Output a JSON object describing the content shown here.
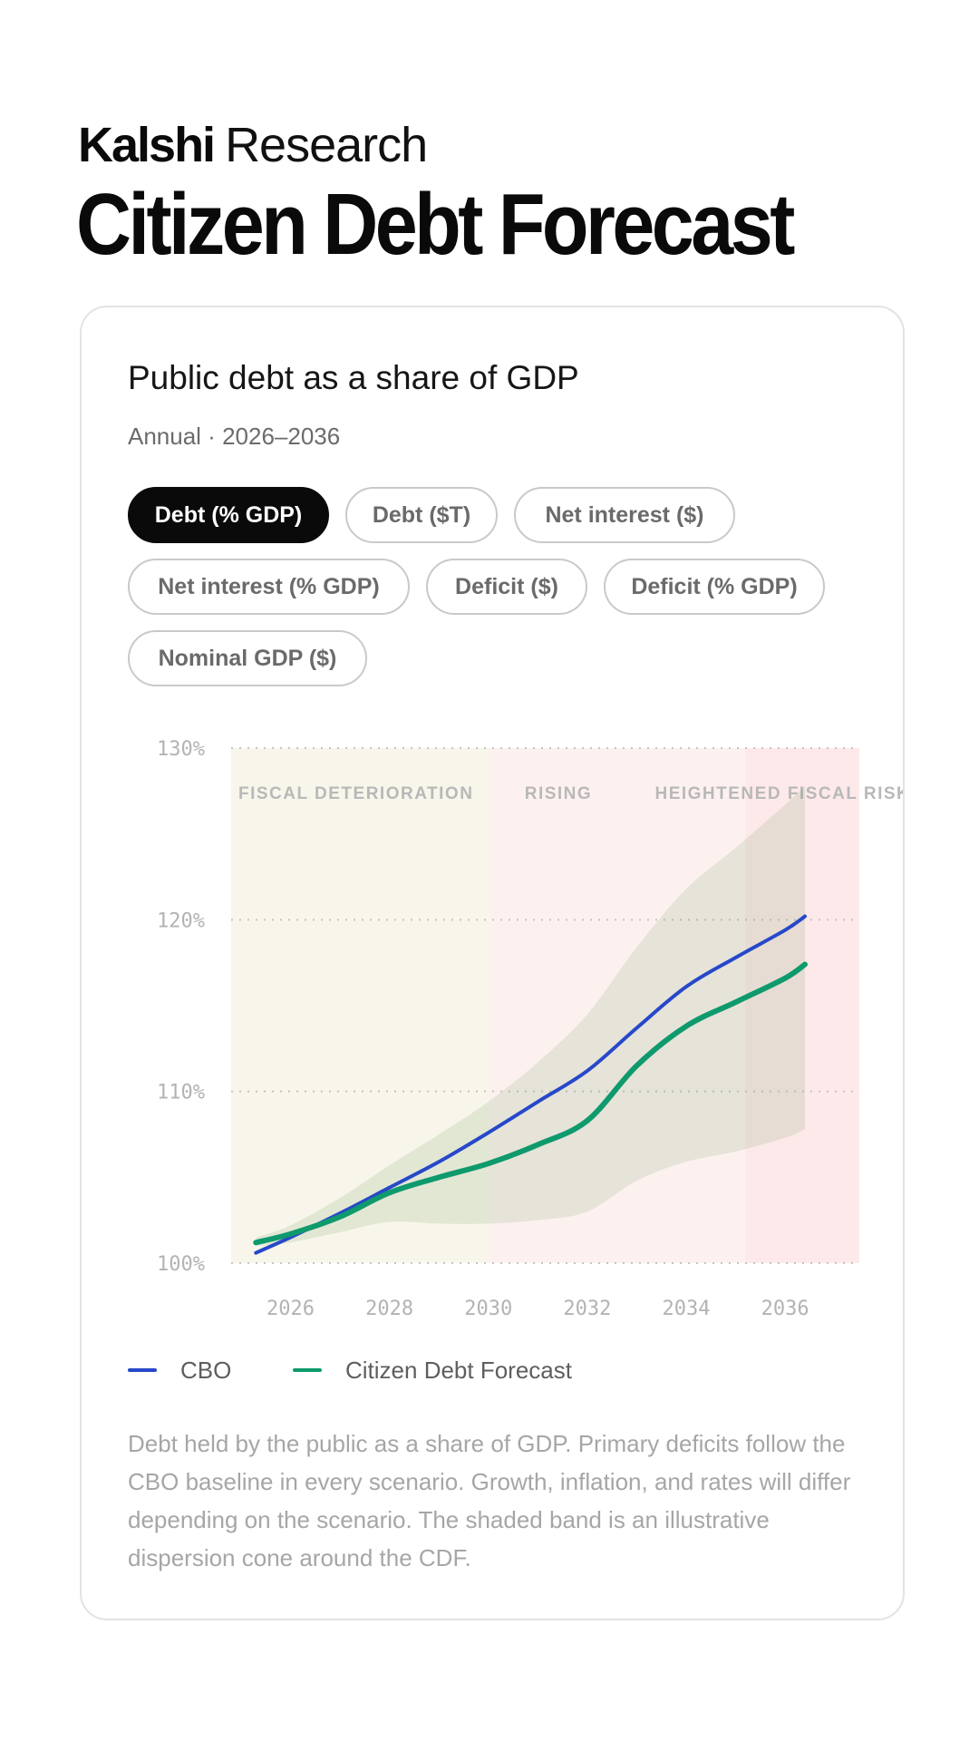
{
  "header": {
    "brand_logo": "Kalshi",
    "brand_sub": "Research",
    "title": "Citizen Debt Forecast"
  },
  "card": {
    "title": "Public debt as a share of GDP",
    "subtitle": "Annual · 2026–2036",
    "tabs": [
      {
        "label": "Debt (% GDP)",
        "active": true
      },
      {
        "label": "Debt ($T)",
        "active": false
      },
      {
        "label": "Net interest ($)",
        "active": false
      },
      {
        "label": "Net interest (% GDP)",
        "active": false
      },
      {
        "label": "Deficit ($)",
        "active": false
      },
      {
        "label": "Deficit (% GDP)",
        "active": false
      },
      {
        "label": "Nominal GDP ($)",
        "active": false
      }
    ],
    "footnote": "Debt held by the public as a share of GDP. Primary deficits follow the CBO baseline in every scenario. Growth, inflation, and rates will differ depending on the scenario. The shaded band is an illustrative dispersion cone around the CDF."
  },
  "chart_data": {
    "type": "line",
    "title": "Public debt as a share of GDP",
    "subtitle": "Annual · 2026–2036",
    "xlabel": "",
    "ylabel": "",
    "xlim": [
      2024.8,
      2037.5
    ],
    "ylim": [
      100,
      130
    ],
    "x_ticks": [
      "2026",
      "2028",
      "2030",
      "2032",
      "2034",
      "2036"
    ],
    "y_ticks": [
      "100%",
      "110%",
      "120%",
      "130%"
    ],
    "grid": "horizontal dotted",
    "legend": "bottom-left",
    "colors": {
      "cbo": "#2748c9",
      "cdf": "#0e9a6c",
      "band": "#6f9b62",
      "zone_deterioration": "#f8f6ea",
      "zone_risk": "#fdf1f0",
      "zone_heightened": "#fde9e9",
      "grid": "#c4c4c4",
      "tick_text": "#b3b3b3",
      "zone_label": "#b8b8b8"
    },
    "zones": [
      {
        "label": "FISCAL DETERIORATION",
        "start": 2024.8,
        "end": 2030
      },
      {
        "label": "RISING",
        "start": 2030,
        "end": 2035.2
      },
      {
        "label": "HEIGHTENED FISCAL RISK",
        "start": 2035.2,
        "end": 2037.5
      }
    ],
    "series": [
      {
        "name": "CBO",
        "x": [
          2025.3,
          2026,
          2027,
          2028,
          2029,
          2030,
          2031,
          2032,
          2033,
          2034,
          2035,
          2036,
          2036.4
        ],
        "y": [
          100.6,
          101.5,
          102.9,
          104.4,
          105.9,
          107.6,
          109.4,
          111.2,
          113.7,
          116.1,
          117.8,
          119.4,
          120.2
        ]
      },
      {
        "name": "Citizen Debt Forecast",
        "x": [
          2025.3,
          2026,
          2027,
          2028,
          2029,
          2030,
          2031,
          2032,
          2033,
          2034,
          2035,
          2036,
          2036.4
        ],
        "y": [
          101.2,
          101.7,
          102.7,
          104.1,
          105.0,
          105.8,
          106.9,
          108.3,
          111.5,
          113.8,
          115.2,
          116.6,
          117.4
        ]
      }
    ],
    "band": {
      "x": [
        2025.3,
        2026,
        2027,
        2028,
        2029,
        2030,
        2031,
        2032,
        2033,
        2034,
        2035,
        2036,
        2036.4
      ],
      "lower": [
        101.0,
        101.2,
        101.8,
        102.4,
        102.3,
        102.3,
        102.5,
        103.0,
        104.8,
        105.9,
        106.5,
        107.3,
        107.8
      ],
      "upper": [
        101.5,
        102.2,
        103.8,
        105.7,
        107.5,
        109.4,
        111.7,
        114.5,
        118.4,
        121.8,
        124.2,
        126.7,
        127.8
      ]
    }
  }
}
